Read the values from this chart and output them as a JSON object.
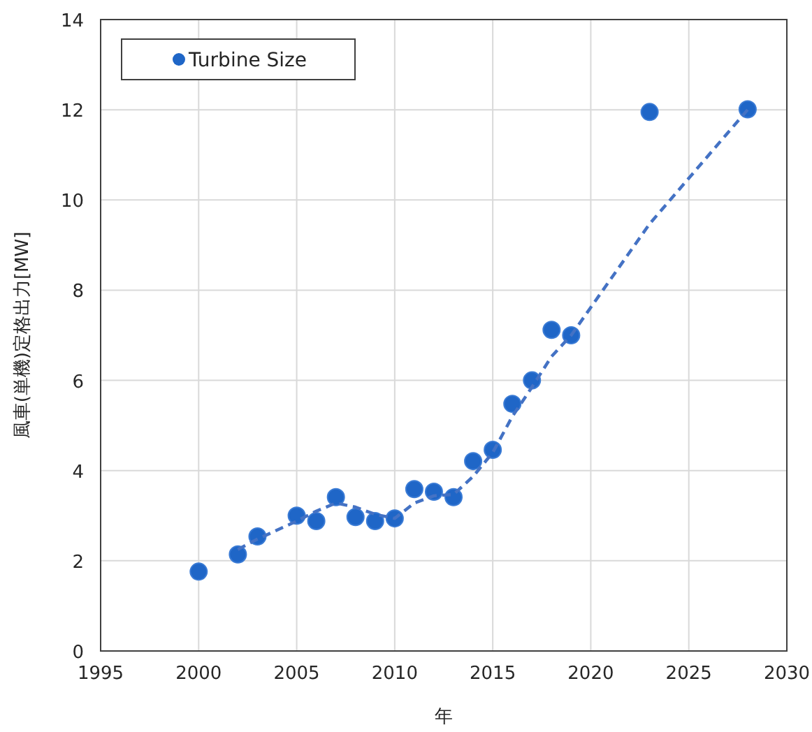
{
  "chart_data": {
    "type": "scatter",
    "xlabel": "年",
    "ylabel": "風車(単機)定格出力[MW]",
    "xlim": [
      1995,
      2030
    ],
    "xticks": [
      1995,
      2000,
      2005,
      2010,
      2015,
      2020,
      2025,
      2030
    ],
    "ylim": [
      0,
      14
    ],
    "yticks": [
      0,
      2,
      4,
      6,
      8,
      10,
      12,
      14
    ],
    "grid": true,
    "legend": "top left",
    "series": [
      {
        "name": "Turbine Size",
        "marker": "circle",
        "color": "#1f66c7",
        "x": [
          2000,
          2002,
          2003,
          2005,
          2006,
          2007,
          2008,
          2009,
          2010,
          2011,
          2012,
          2013,
          2014,
          2015,
          2016,
          2017,
          2018,
          2019,
          2023,
          2028
        ],
        "values": [
          1.76,
          2.14,
          2.54,
          3.0,
          2.88,
          3.41,
          2.97,
          2.88,
          2.94,
          3.59,
          3.53,
          3.41,
          4.21,
          4.46,
          5.48,
          6.0,
          7.12,
          7.0,
          11.95,
          12.01
        ]
      },
      {
        "type": "line",
        "marker": "none",
        "line_style": "dashed",
        "color": "#4472c4",
        "x": [
          2002,
          2003,
          2005,
          2006,
          2007,
          2008,
          2009,
          2010,
          2011,
          2012,
          2013,
          2014,
          2015,
          2016,
          2017,
          2018,
          2019,
          2023,
          2028
        ],
        "values": [
          2.25,
          2.48,
          2.88,
          3.1,
          3.28,
          3.19,
          3.03,
          2.94,
          3.28,
          3.44,
          3.47,
          3.87,
          4.4,
          5.2,
          5.85,
          6.53,
          7.0,
          9.47,
          12.0
        ]
      }
    ]
  }
}
